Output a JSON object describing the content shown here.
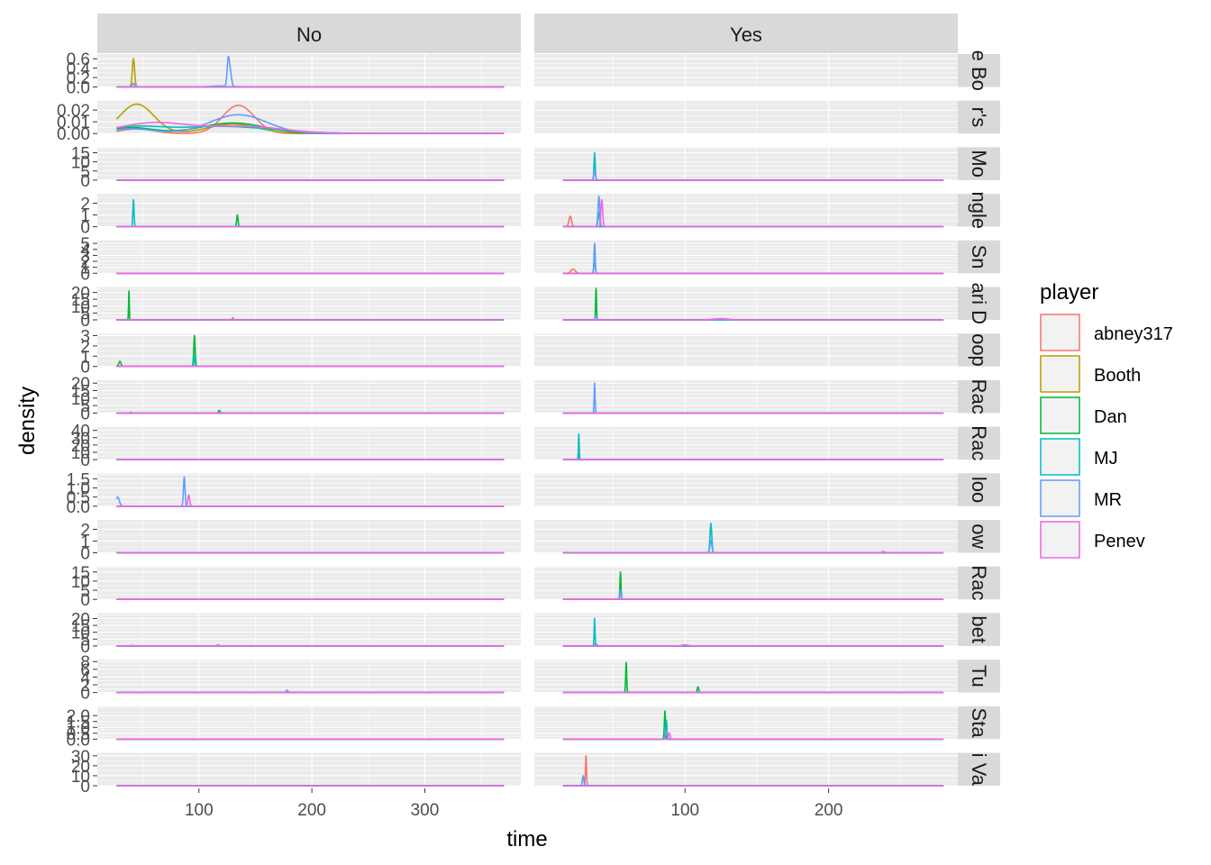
{
  "chart_data": {
    "type": "line",
    "geom": "density",
    "xlabel": "time",
    "ylabel": "density",
    "legend_title": "player",
    "legend_position": "right",
    "grid": true,
    "col_facet": [
      "No",
      "Yes"
    ],
    "row_facet_labels": [
      "e Bo",
      "r's",
      "Mo",
      "ngle",
      "Sn",
      "ari D",
      "oop",
      "Rac",
      "Rac",
      "loo",
      "ow",
      "Rac",
      "bet",
      "Tu",
      "Sta",
      "i Va"
    ],
    "players": [
      {
        "name": "abney317",
        "color": "#F8766D"
      },
      {
        "name": "Booth",
        "color": "#B79F00"
      },
      {
        "name": "Dan",
        "color": "#00BA38"
      },
      {
        "name": "MJ",
        "color": "#00BFC4"
      },
      {
        "name": "MR",
        "color": "#619CFF"
      },
      {
        "name": "Penev",
        "color": "#F564E3"
      }
    ],
    "x_axes": [
      {
        "facet": "No",
        "range": [
          10,
          385
        ],
        "ticks": [
          100,
          200,
          300
        ],
        "tick_labels": [
          "100",
          "200",
          "300"
        ]
      },
      {
        "facet": "Yes",
        "range": [
          -5,
          290
        ],
        "ticks": [
          100,
          200
        ],
        "tick_labels": [
          "100",
          "200"
        ]
      }
    ],
    "rows": [
      {
        "ymax": 0.7,
        "ticks": [
          0.0,
          0.2,
          0.4,
          0.6
        ],
        "tick_labels": [
          "0.0",
          "0.2",
          "0.4",
          "0.6"
        ],
        "No": {
          "x_extent": [
            27,
            370
          ],
          "peaks": [
            {
              "player": "Booth",
              "x": 42,
              "h": 0.6,
              "w": 1
            },
            {
              "player": "MR",
              "x": 42,
              "h": 0.08,
              "w": 1
            },
            {
              "player": "MR",
              "x": 126,
              "h": 0.6,
              "w": 1
            },
            {
              "player": "MR",
              "x": 128,
              "h": 0.25,
              "w": 1
            },
            {
              "player": "MR",
              "x": 120,
              "h": 0.02,
              "w": 10
            }
          ]
        },
        "Yes": null
      },
      {
        "ymax": 0.028,
        "ticks": [
          0.0,
          0.01,
          0.02
        ],
        "tick_labels": [
          "0.00",
          "0.01",
          "0.02"
        ],
        "No": {
          "x_extent": [
            27,
            370
          ],
          "peaks": [
            {
              "player": "Booth",
              "x": 45,
              "h": 0.025,
              "w": 15
            },
            {
              "player": "Booth",
              "x": 130,
              "h": 0.008,
              "w": 22
            },
            {
              "player": "abney317",
              "x": 135,
              "h": 0.024,
              "w": 14
            },
            {
              "player": "abney317",
              "x": 45,
              "h": 0.004,
              "w": 15
            },
            {
              "player": "MR",
              "x": 135,
              "h": 0.016,
              "w": 25
            },
            {
              "player": "MR",
              "x": 40,
              "h": 0.004,
              "w": 20
            },
            {
              "player": "Dan",
              "x": 130,
              "h": 0.009,
              "w": 28
            },
            {
              "player": "Dan",
              "x": 40,
              "h": 0.005,
              "w": 20
            },
            {
              "player": "MJ",
              "x": 120,
              "h": 0.006,
              "w": 45
            },
            {
              "player": "MJ",
              "x": 40,
              "h": 0.005,
              "w": 25
            },
            {
              "player": "Penev",
              "x": 60,
              "h": 0.009,
              "w": 30
            },
            {
              "player": "Penev",
              "x": 140,
              "h": 0.006,
              "w": 35
            }
          ]
        },
        "Yes": null
      },
      {
        "ymax": 18,
        "ticks": [
          0,
          5,
          10,
          15
        ],
        "tick_labels": [
          "0",
          "5",
          "10",
          "15"
        ],
        "No": {
          "x_extent": [
            27,
            370
          ],
          "peaks": []
        },
        "Yes": {
          "x_extent": [
            15,
            280
          ],
          "peaks": [
            {
              "player": "MJ",
              "x": 37,
              "h": 15,
              "w": 0.4
            },
            {
              "player": "MR",
              "x": 37,
              "h": 5,
              "w": 0.6
            }
          ]
        }
      },
      {
        "ymax": 2.8,
        "ticks": [
          0,
          1,
          2
        ],
        "tick_labels": [
          "0",
          "1",
          "2"
        ],
        "No": {
          "x_extent": [
            27,
            370
          ],
          "peaks": [
            {
              "player": "MJ",
              "x": 42,
              "h": 2.3,
              "w": 0.5
            },
            {
              "player": "Dan",
              "x": 134,
              "h": 1.0,
              "w": 0.6
            }
          ]
        },
        "Yes": {
          "x_extent": [
            15,
            280
          ],
          "peaks": [
            {
              "player": "abney317",
              "x": 20,
              "h": 0.9,
              "w": 0.9
            },
            {
              "player": "MR",
              "x": 40,
              "h": 2.6,
              "w": 0.6
            },
            {
              "player": "Penev",
              "x": 42,
              "h": 2.3,
              "w": 0.6
            },
            {
              "player": "MJ",
              "x": 40,
              "h": 1.2,
              "w": 0.6
            }
          ]
        }
      },
      {
        "ymax": 5.5,
        "ticks": [
          0,
          1,
          2,
          3,
          4,
          5
        ],
        "tick_labels": [
          "0",
          "1",
          "2",
          "3",
          "4",
          "5"
        ],
        "No": {
          "x_extent": [
            27,
            370
          ],
          "peaks": []
        },
        "Yes": {
          "x_extent": [
            15,
            280
          ],
          "peaks": [
            {
              "player": "abney317",
              "x": 22,
              "h": 0.7,
              "w": 1.5
            },
            {
              "player": "MR",
              "x": 37,
              "h": 5.0,
              "w": 0.4
            },
            {
              "player": "MJ",
              "x": 37,
              "h": 2.0,
              "w": 0.5
            }
          ]
        }
      },
      {
        "ymax": 24,
        "ticks": [
          0,
          5,
          10,
          15,
          20
        ],
        "tick_labels": [
          "0",
          "5",
          "10",
          "15",
          "20"
        ],
        "No": {
          "x_extent": [
            27,
            370
          ],
          "peaks": [
            {
              "player": "Dan",
              "x": 38,
              "h": 21,
              "w": 0.3
            },
            {
              "player": "abney317",
              "x": 130,
              "h": 1.5,
              "w": 0.6
            }
          ]
        },
        "Yes": {
          "x_extent": [
            15,
            280
          ],
          "peaks": [
            {
              "player": "Dan",
              "x": 38,
              "h": 23,
              "w": 0.3
            },
            {
              "player": "MR",
              "x": 38,
              "h": 3,
              "w": 0.5
            },
            {
              "player": "Penev",
              "x": 125,
              "h": 0.9,
              "w": 5
            }
          ]
        }
      },
      {
        "ymax": 3.2,
        "ticks": [
          0,
          1,
          2,
          3
        ],
        "tick_labels": [
          "0",
          "1",
          "2",
          "3"
        ],
        "No": {
          "x_extent": [
            27,
            370
          ],
          "peaks": [
            {
              "player": "Dan",
              "x": 30,
              "h": 0.5,
              "w": 1
            },
            {
              "player": "Dan",
              "x": 96,
              "h": 3.0,
              "w": 0.6
            },
            {
              "player": "MJ",
              "x": 96,
              "h": 1.0,
              "w": 0.5
            }
          ]
        },
        "Yes": null
      },
      {
        "ymax": 22,
        "ticks": [
          0,
          5,
          10,
          15,
          20
        ],
        "tick_labels": [
          "0",
          "5",
          "10",
          "15",
          "20"
        ],
        "No": {
          "x_extent": [
            27,
            370
          ],
          "peaks": [
            {
              "player": "Dan",
              "x": 118,
              "h": 1.8,
              "w": 0.7
            },
            {
              "player": "MR",
              "x": 40,
              "h": 0.5,
              "w": 0.7
            }
          ]
        },
        "Yes": {
          "x_extent": [
            15,
            280
          ],
          "peaks": [
            {
              "player": "MR",
              "x": 37,
              "h": 20,
              "w": 0.3
            }
          ]
        }
      },
      {
        "ymax": 45,
        "ticks": [
          0,
          10,
          20,
          30,
          40
        ],
        "tick_labels": [
          "0",
          "10",
          "20",
          "30",
          "40"
        ],
        "No": {
          "x_extent": [
            27,
            370
          ],
          "peaks": []
        },
        "Yes": {
          "x_extent": [
            15,
            280
          ],
          "peaks": [
            {
              "player": "MJ",
              "x": 26,
              "h": 35,
              "w": 0.25
            },
            {
              "player": "Dan",
              "x": 26,
              "h": 10,
              "w": 0.3
            }
          ]
        }
      },
      {
        "ymax": 1.8,
        "ticks": [
          0.0,
          0.5,
          1.0,
          1.5
        ],
        "tick_labels": [
          "0.0",
          "0.5",
          "1.0",
          "1.5"
        ],
        "No": {
          "x_extent": [
            27,
            370
          ],
          "peaks": [
            {
              "player": "MR",
              "x": 28,
              "h": 0.5,
              "w": 1.5
            },
            {
              "player": "MR",
              "x": 87,
              "h": 1.6,
              "w": 0.7
            },
            {
              "player": "Penev",
              "x": 91,
              "h": 0.6,
              "w": 0.8
            }
          ]
        },
        "Yes": null
      },
      {
        "ymax": 2.8,
        "ticks": [
          0,
          1,
          2
        ],
        "tick_labels": [
          "0",
          "1",
          "2"
        ],
        "No": {
          "x_extent": [
            27,
            370
          ],
          "peaks": []
        },
        "Yes": {
          "x_extent": [
            15,
            280
          ],
          "peaks": [
            {
              "player": "MJ",
              "x": 118,
              "h": 2.5,
              "w": 0.6
            },
            {
              "player": "MR",
              "x": 118,
              "h": 1.0,
              "w": 0.7
            },
            {
              "player": "Penev",
              "x": 238,
              "h": 0.1,
              "w": 1
            }
          ]
        }
      },
      {
        "ymax": 18,
        "ticks": [
          0,
          5,
          10,
          15
        ],
        "tick_labels": [
          "0",
          "5",
          "10",
          "15"
        ],
        "No": {
          "x_extent": [
            27,
            370
          ],
          "peaks": []
        },
        "Yes": {
          "x_extent": [
            15,
            280
          ],
          "peaks": [
            {
              "player": "Dan",
              "x": 55,
              "h": 15,
              "w": 0.35
            },
            {
              "player": "MR",
              "x": 55,
              "h": 5,
              "w": 0.4
            }
          ]
        }
      },
      {
        "ymax": 24,
        "ticks": [
          0,
          5,
          10,
          15,
          20
        ],
        "tick_labels": [
          "0",
          "5",
          "10",
          "15",
          "20"
        ],
        "No": {
          "x_extent": [
            27,
            370
          ],
          "peaks": [
            {
              "player": "MR",
              "x": 40,
              "h": 0.4,
              "w": 1
            },
            {
              "player": "MR",
              "x": 117,
              "h": 0.8,
              "w": 1
            }
          ]
        },
        "Yes": {
          "x_extent": [
            15,
            280
          ],
          "peaks": [
            {
              "player": "MJ",
              "x": 37,
              "h": 20,
              "w": 0.3
            },
            {
              "player": "MR",
              "x": 38,
              "h": 1.5,
              "w": 0.7
            },
            {
              "player": "Penev",
              "x": 100,
              "h": 0.8,
              "w": 2
            }
          ]
        }
      },
      {
        "ymax": 8.5,
        "ticks": [
          0,
          2,
          4,
          6,
          8
        ],
        "tick_labels": [
          "0",
          "2",
          "4",
          "6",
          "8"
        ],
        "No": {
          "x_extent": [
            27,
            370
          ],
          "peaks": [
            {
              "player": "MR",
              "x": 178,
              "h": 0.6,
              "w": 0.8
            }
          ]
        },
        "Yes": {
          "x_extent": [
            15,
            280
          ],
          "peaks": [
            {
              "player": "Dan",
              "x": 59,
              "h": 7.8,
              "w": 0.35
            },
            {
              "player": "Dan",
              "x": 109,
              "h": 1.5,
              "w": 0.5
            }
          ]
        }
      },
      {
        "ymax": 2.8,
        "ticks": [
          0.0,
          0.5,
          1.0,
          1.5,
          2.0
        ],
        "tick_labels": [
          "0.0",
          "0.5",
          "1.0",
          "1.5",
          "2.0"
        ],
        "No": {
          "x_extent": [
            27,
            370
          ],
          "peaks": []
        },
        "Yes": {
          "x_extent": [
            15,
            280
          ],
          "peaks": [
            {
              "player": "Dan",
              "x": 86,
              "h": 2.4,
              "w": 0.4
            },
            {
              "player": "MJ",
              "x": 87,
              "h": 1.6,
              "w": 0.4
            },
            {
              "player": "MR",
              "x": 87,
              "h": 0.8,
              "w": 0.5
            },
            {
              "player": "Penev",
              "x": 89,
              "h": 0.5,
              "w": 0.6
            }
          ]
        }
      },
      {
        "ymax": 33,
        "ticks": [
          0,
          10,
          20,
          30
        ],
        "tick_labels": [
          "0",
          "10",
          "20",
          "30"
        ],
        "No": {
          "x_extent": [
            27,
            370
          ],
          "peaks": []
        },
        "Yes": {
          "x_extent": [
            15,
            280
          ],
          "peaks": [
            {
              "player": "abney317",
              "x": 31,
              "h": 30,
              "w": 0.35
            },
            {
              "player": "MR",
              "x": 29,
              "h": 10,
              "w": 0.5
            }
          ]
        }
      }
    ]
  }
}
